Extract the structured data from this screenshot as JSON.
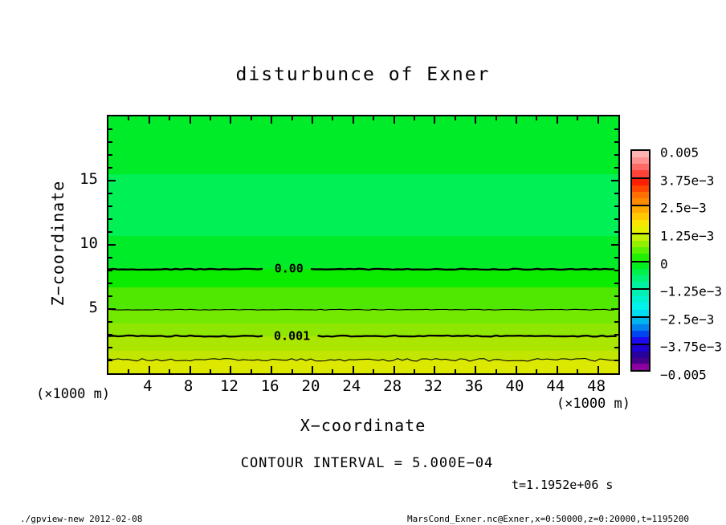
{
  "chart_data": {
    "type": "heatmap",
    "title": "disturbunce of Exner",
    "xlabel": "X−coordinate",
    "ylabel": "Z−coordinate",
    "x_unit_label_left": "(×1000 m)",
    "x_unit_label_right": "(×1000 m)",
    "xlim": [
      0,
      50
    ],
    "ylim": [
      0,
      20
    ],
    "x_major_ticks": [
      4,
      8,
      12,
      16,
      20,
      24,
      28,
      32,
      36,
      40,
      44,
      48
    ],
    "x_minor_tick_step": 2,
    "y_major_ticks": [
      5,
      10,
      15
    ],
    "y_minor_tick_step": 1,
    "grid": false,
    "annotation_contour_interval": "CONTOUR INTERVAL = 5.000E−04",
    "annotation_time": "t=1.1952e+06 s",
    "fill_bands": [
      {
        "z_top": 20,
        "z_bottom": 15.5,
        "value_range": "0 to -2.5e-4",
        "color": "#00EB28"
      },
      {
        "z_top": 15.5,
        "z_bottom": 10.7,
        "value_range": "-2.5e-4 to -5e-4",
        "color": "#00F055"
      },
      {
        "z_top": 10.7,
        "z_bottom": 8.1,
        "value_range": "0 to -2.5e-4",
        "color": "#00EB28"
      },
      {
        "z_top": 8.1,
        "z_bottom": 6.7,
        "value_range": "0 to 2.5e-4",
        "color": "#0AEB00"
      },
      {
        "z_top": 6.7,
        "z_bottom": 4.95,
        "value_range": "2.5e-4 to 5e-4",
        "color": "#50E800"
      },
      {
        "z_top": 4.95,
        "z_bottom": 3.9,
        "value_range": "5e-4 to 7.5e-4",
        "color": "#73E800"
      },
      {
        "z_top": 3.9,
        "z_bottom": 2.9,
        "value_range": "7.5e-4 to 1e-3",
        "color": "#8FE600"
      },
      {
        "z_top": 2.9,
        "z_bottom": 1.75,
        "value_range": "1e-3 to 1.25e-3",
        "color": "#AAE600"
      },
      {
        "z_top": 1.75,
        "z_bottom": 1.05,
        "value_range": "1.25e-3 to 1.5e-3",
        "color": "#C3E600"
      },
      {
        "z_top": 1.05,
        "z_bottom": 0,
        "value_range": "> 1.5e-3",
        "color": "#DDE800"
      }
    ],
    "contour_lines": [
      {
        "z": 8.1,
        "value": 0.0,
        "thick": true,
        "label": "0.00",
        "label_x": 17.7,
        "amp": 0.6
      },
      {
        "z": 4.95,
        "value": 0.0005,
        "thick": false,
        "amp": 0.5
      },
      {
        "z": 2.9,
        "value": 0.001,
        "thick": true,
        "label": "0.001",
        "label_x": 18.0,
        "amp": 0.8
      },
      {
        "z": 1.05,
        "value": 0.0015,
        "thick": false,
        "amp": 1.7
      }
    ],
    "colorbar": {
      "labels": [
        "0.005",
        "3.75e−3",
        "2.5e−3",
        "1.25e−3",
        "0",
        "−1.25e−3",
        "−2.5e−3",
        "−3.75e−3",
        "−0.005"
      ],
      "blocks": [
        {
          "colors": [
            "#FFB4B4",
            "#FF9191",
            "#FF6A64",
            "#FF4137"
          ]
        },
        {
          "colors": [
            "#FF1E00",
            "#FF4600",
            "#FF6E00",
            "#FF8C00"
          ]
        },
        {
          "colors": [
            "#FFAA00",
            "#FFC800",
            "#F8E600",
            "#E6F000"
          ]
        },
        {
          "colors": [
            "#C3F000",
            "#91F000",
            "#5AF000",
            "#1EF000"
          ]
        },
        {
          "colors": [
            "#00F01E",
            "#00F14B",
            "#00F278",
            "#00F3A0"
          ]
        },
        {
          "colors": [
            "#00F0B4",
            "#00F1D2",
            "#00F2EB",
            "#00DCF0"
          ]
        },
        {
          "colors": [
            "#00B4F0",
            "#0082F0",
            "#0046F0",
            "#1E0AF0"
          ]
        },
        {
          "colors": [
            "#1E00D2",
            "#28009B",
            "#46008C",
            "#8C00A0"
          ]
        }
      ]
    }
  },
  "footer": {
    "left": "./gpview-new  2012-02-08",
    "right": "MarsCond_Exner.nc@Exner,x=0:50000,z=0:20000,t=1195200"
  }
}
